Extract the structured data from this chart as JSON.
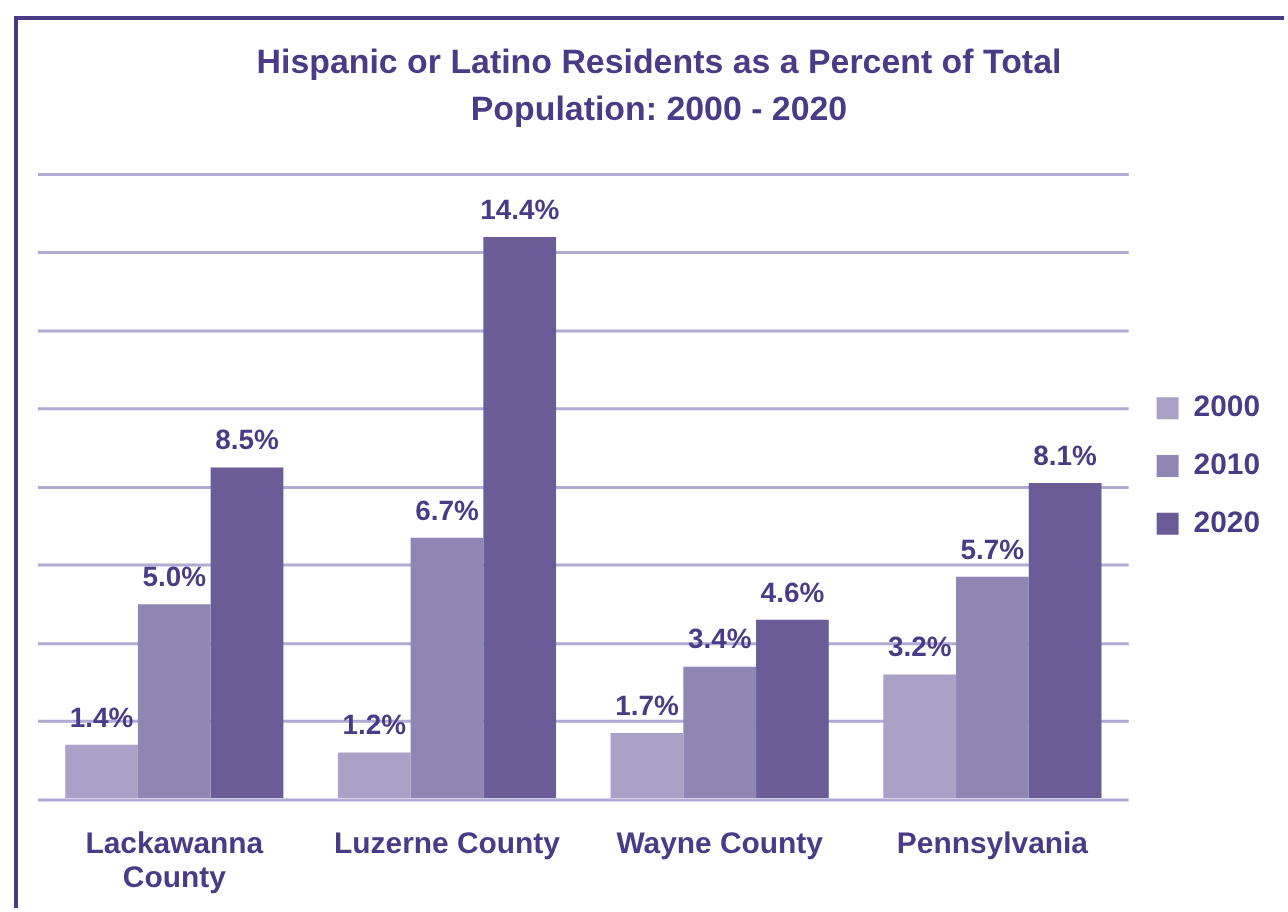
{
  "chart_data": {
    "type": "bar",
    "title": "Hispanic or Latino Residents as a Percent of Total Population: 2000 - 2020",
    "categories": [
      "Lackawanna County",
      "Luzerne County",
      "Wayne County",
      "Pennsylvania"
    ],
    "series": [
      {
        "name": "2000",
        "color": "#a9a1c6",
        "values": [
          1.4,
          1.2,
          1.7,
          3.2
        ],
        "value_labels": [
          "1.4%",
          "1.2%",
          "1.7%",
          "3.2%"
        ]
      },
      {
        "name": "2010",
        "color": "#8f86b3",
        "values": [
          5.0,
          6.7,
          3.4,
          5.7
        ],
        "value_labels": [
          "5.0%",
          "6.7%",
          "3.4%",
          "5.7%"
        ]
      },
      {
        "name": "2020",
        "color": "#6b5c98",
        "values": [
          8.5,
          14.4,
          4.6,
          8.1
        ],
        "value_labels": [
          "8.5%",
          "14.4%",
          "4.6%",
          "8.1%"
        ]
      }
    ],
    "ylim": [
      0,
      16
    ],
    "yticks": [
      {
        "value": 0,
        "label": null
      },
      {
        "value": 2,
        "label": null
      },
      {
        "value": 4,
        "label": null
      },
      {
        "value": 6,
        "label": null
      },
      {
        "value": 8,
        "label": null
      },
      {
        "value": 10,
        "label": null
      },
      {
        "value": 12,
        "label": null
      },
      {
        "value": 14,
        "label": null
      }
    ],
    "grid": "y",
    "legend": "right",
    "tick_labels": "x"
  }
}
